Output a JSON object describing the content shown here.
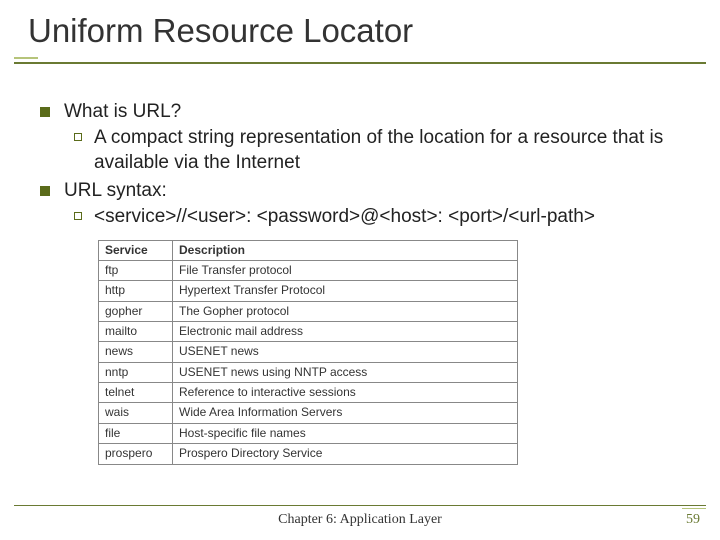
{
  "title": "Uniform Resource Locator",
  "bullets": [
    {
      "text": "What is URL?",
      "sub": [
        "A compact string representation of the location for a resource that is available via the Internet"
      ]
    },
    {
      "text": "URL syntax:",
      "sub": [
        "<service>//<user>: <password>@<host>: <port>/<url-path>"
      ]
    }
  ],
  "table": {
    "columns": [
      "Service",
      "Description"
    ],
    "rows": [
      [
        "ftp",
        "File Transfer protocol"
      ],
      [
        "http",
        "Hypertext Transfer Protocol"
      ],
      [
        "gopher",
        "The Gopher protocol"
      ],
      [
        "mailto",
        "Electronic mail address"
      ],
      [
        "news",
        "USENET news"
      ],
      [
        "nntp",
        "USENET news using NNTP access"
      ],
      [
        "telnet",
        "Reference to interactive sessions"
      ],
      [
        "wais",
        "Wide Area Information Servers"
      ],
      [
        "file",
        "Host-specific file names"
      ],
      [
        "prospero",
        "Prospero Directory Service"
      ]
    ],
    "col_widths": [
      "74px",
      "auto"
    ]
  },
  "footer": "Chapter 6: Application Layer",
  "page_number": "59",
  "colors": {
    "accent": "#6a7a33",
    "accent_light": "#b6c47a",
    "text": "#222222",
    "border": "#888888"
  }
}
